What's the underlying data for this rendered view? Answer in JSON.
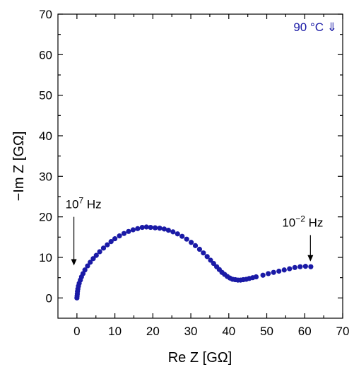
{
  "chart_data": {
    "type": "scatter",
    "xlabel": "Re Z [GΩ]",
    "ylabel": "−Im Z [GΩ]",
    "xlim": [
      -5,
      70
    ],
    "ylim": [
      -5,
      70
    ],
    "xticks": [
      0,
      10,
      20,
      30,
      40,
      50,
      60,
      70
    ],
    "yticks": [
      0,
      10,
      20,
      30,
      40,
      50,
      60,
      70
    ],
    "grid": false,
    "marker_color": "#1a1aa6",
    "legend_label": "90 °C ⇓",
    "annotations": [
      {
        "label_base": "10",
        "label_exp": "7",
        "label_unit": " Hz",
        "arrow_x": -0.8,
        "arrow_from_y": 20,
        "arrow_to_y": 8
      },
      {
        "label_base": "10",
        "label_exp": "−2",
        "label_unit": " Hz",
        "arrow_x": 61.5,
        "arrow_from_y": 15.5,
        "arrow_to_y": 9
      }
    ],
    "series": [
      {
        "values": [
          [
            0.0,
            0.0
          ],
          [
            0.05,
            0.5
          ],
          [
            0.1,
            1.0
          ],
          [
            0.15,
            1.6
          ],
          [
            0.25,
            2.2
          ],
          [
            0.4,
            2.9
          ],
          [
            0.6,
            3.6
          ],
          [
            0.9,
            4.4
          ],
          [
            1.2,
            5.2
          ],
          [
            1.6,
            6.0
          ],
          [
            2.1,
            6.9
          ],
          [
            2.8,
            7.9
          ],
          [
            3.5,
            8.8
          ],
          [
            4.3,
            9.7
          ],
          [
            5.1,
            10.5
          ],
          [
            6.0,
            11.4
          ],
          [
            7.0,
            12.3
          ],
          [
            8.0,
            13.1
          ],
          [
            9.0,
            13.9
          ],
          [
            10.0,
            14.6
          ],
          [
            11.2,
            15.3
          ],
          [
            12.4,
            15.9
          ],
          [
            13.6,
            16.4
          ],
          [
            14.8,
            16.8
          ],
          [
            16.0,
            17.1
          ],
          [
            17.2,
            17.4
          ],
          [
            18.3,
            17.5
          ],
          [
            19.4,
            17.4
          ],
          [
            20.6,
            17.3
          ],
          [
            21.8,
            17.2
          ],
          [
            23.0,
            17.0
          ],
          [
            24.1,
            16.7
          ],
          [
            25.3,
            16.3
          ],
          [
            26.5,
            15.8
          ],
          [
            27.7,
            15.2
          ],
          [
            28.9,
            14.5
          ],
          [
            30.1,
            13.7
          ],
          [
            31.2,
            12.9
          ],
          [
            32.3,
            12.0
          ],
          [
            33.3,
            11.1
          ],
          [
            34.3,
            10.2
          ],
          [
            35.2,
            9.3
          ],
          [
            36.0,
            8.5
          ],
          [
            36.8,
            7.7
          ],
          [
            37.5,
            7.0
          ],
          [
            38.2,
            6.3
          ],
          [
            38.9,
            5.8
          ],
          [
            39.6,
            5.3
          ],
          [
            40.3,
            4.9
          ],
          [
            41.0,
            4.6
          ],
          [
            41.7,
            4.5
          ],
          [
            42.4,
            4.4
          ],
          [
            43.1,
            4.4
          ],
          [
            43.8,
            4.5
          ],
          [
            44.6,
            4.6
          ],
          [
            45.4,
            4.8
          ],
          [
            46.3,
            5.0
          ],
          [
            47.2,
            5.2
          ],
          [
            49.0,
            5.6
          ],
          [
            50.4,
            6.0
          ],
          [
            51.8,
            6.3
          ],
          [
            53.2,
            6.6
          ],
          [
            54.6,
            6.9
          ],
          [
            56.0,
            7.2
          ],
          [
            57.4,
            7.5
          ],
          [
            58.8,
            7.7
          ],
          [
            60.2,
            7.8
          ],
          [
            61.6,
            7.7
          ]
        ]
      }
    ]
  }
}
